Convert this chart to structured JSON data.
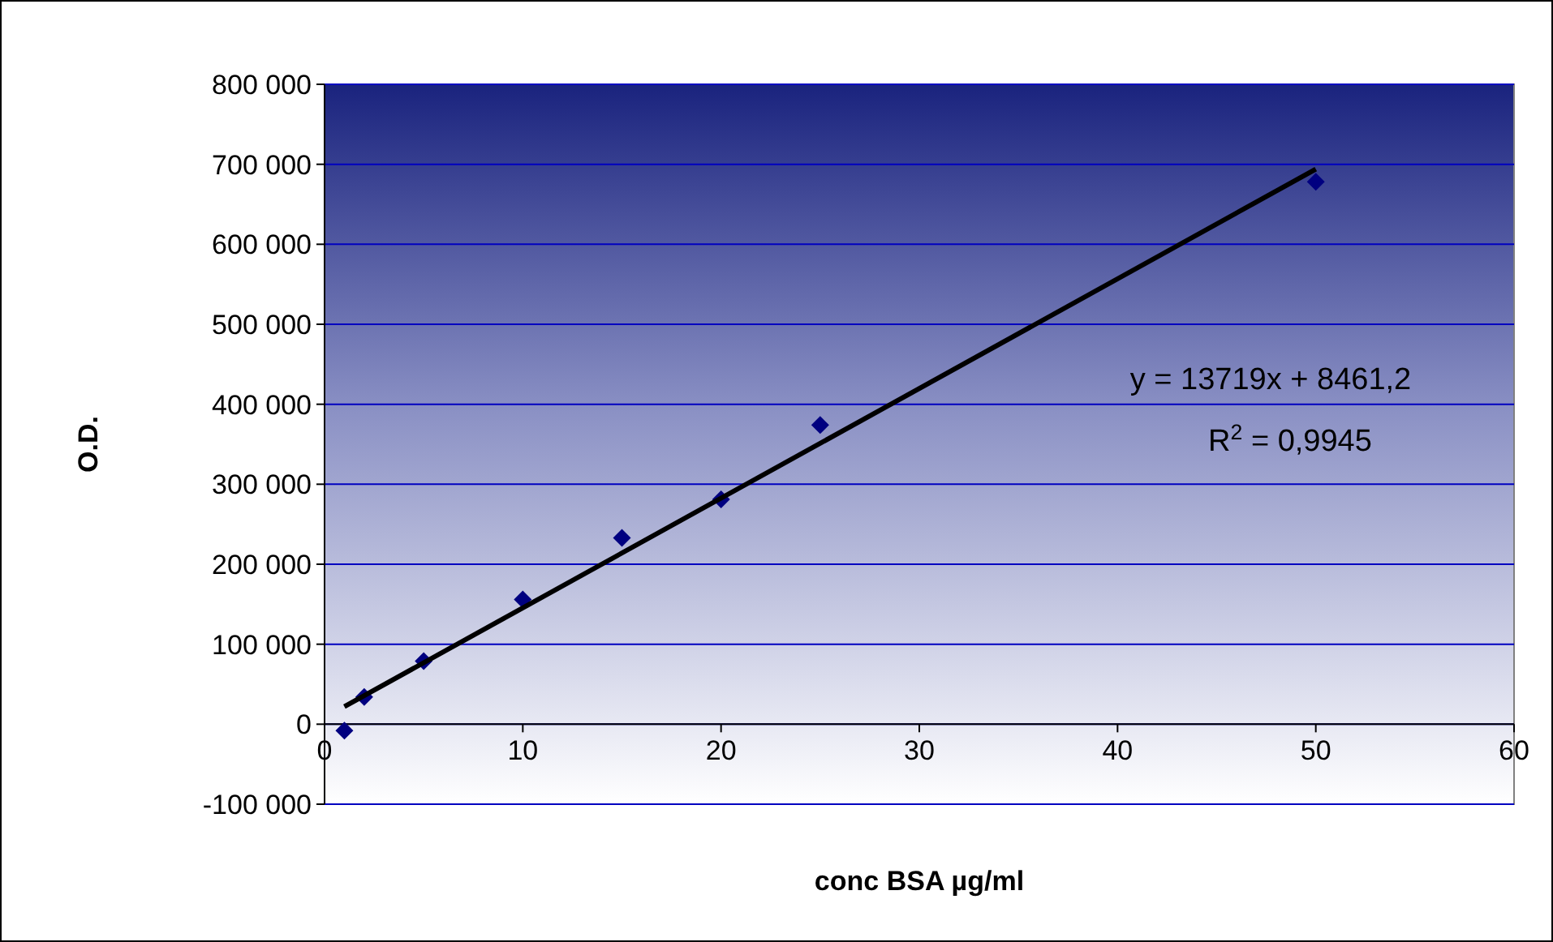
{
  "chart_data": {
    "type": "scatter",
    "xlabel": "conc BSA µg/ml",
    "ylabel": "O.D.",
    "x": [
      1,
      2,
      5,
      10,
      15,
      20,
      25,
      50
    ],
    "series": [
      {
        "color": "#000080",
        "marker": "diamond",
        "values": [
          -8000,
          34000,
          79000,
          156000,
          233000,
          281000,
          374000,
          678000
        ]
      },
      {
        "type": "line",
        "color": "#000000",
        "marker": "none",
        "line_style": "solid",
        "x": [
          1,
          50
        ],
        "values": [
          22000,
          694000
        ]
      }
    ],
    "xlim": [
      0,
      60
    ],
    "xticks": [
      0,
      10,
      20,
      30,
      40,
      50,
      60
    ],
    "ylim": [
      -100000,
      800000
    ],
    "yticks": [
      {
        "value": -100000,
        "label": "-100 000"
      },
      {
        "value": 0,
        "label": "0"
      },
      {
        "value": 100000,
        "label": "100 000"
      },
      {
        "value": 200000,
        "label": "200 000"
      },
      {
        "value": 300000,
        "label": "300 000"
      },
      {
        "value": 400000,
        "label": "400 000"
      },
      {
        "value": 500000,
        "label": "500 000"
      },
      {
        "value": 600000,
        "label": "600 000"
      },
      {
        "value": 700000,
        "label": "700 000"
      },
      {
        "value": 800000,
        "label": "800 000"
      }
    ],
    "grid": "y",
    "annotations": [
      "y = 13719x + 8461,2",
      "R$^{2}$ = 0,9945"
    ]
  }
}
